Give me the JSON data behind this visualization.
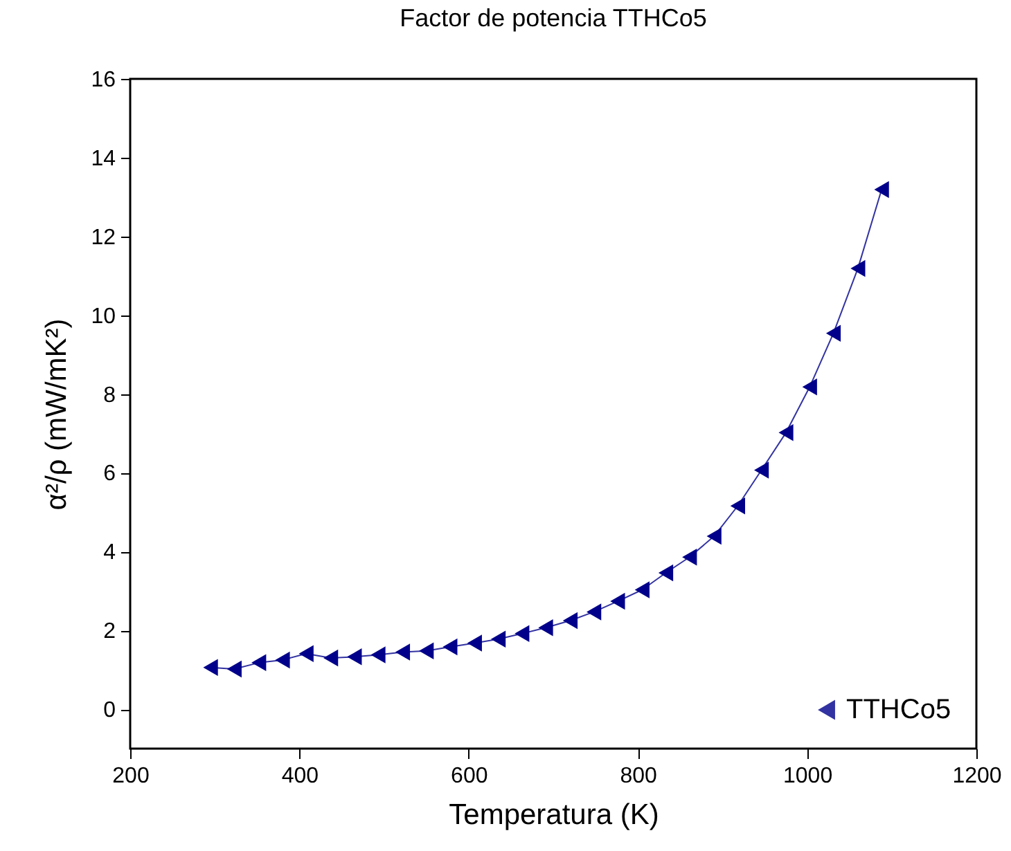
{
  "chart_data": {
    "type": "line",
    "title": "Factor de potencia TTHCo5",
    "xlabel": "Temperatura (K)",
    "ylabel": "α²/ρ (mW/mK²)",
    "x": [
      295,
      323,
      352,
      380,
      408,
      437,
      465,
      493,
      522,
      550,
      578,
      607,
      635,
      663,
      691,
      720,
      748,
      776,
      805,
      833,
      861,
      890,
      918,
      946,
      975,
      1003,
      1031,
      1060,
      1088
    ],
    "series": [
      {
        "name": "TTHCo5",
        "color": "#00008b",
        "values": [
          1.06,
          1.02,
          1.18,
          1.25,
          1.41,
          1.3,
          1.33,
          1.38,
          1.45,
          1.48,
          1.58,
          1.68,
          1.78,
          1.92,
          2.07,
          2.25,
          2.47,
          2.74,
          3.03,
          3.46,
          3.86,
          4.39,
          5.16,
          6.07,
          7.02,
          8.18,
          9.54,
          11.19,
          13.19
        ]
      }
    ],
    "xlim": [
      200,
      1200
    ],
    "xticks": [
      200,
      400,
      600,
      800,
      1000,
      1200
    ],
    "ylim": [
      -1,
      16
    ],
    "yticks": [
      0,
      2,
      4,
      6,
      8,
      10,
      12,
      14,
      16
    ],
    "marker": "triangle",
    "line_style": "solid",
    "legend": "bottom right",
    "grid": false
  }
}
